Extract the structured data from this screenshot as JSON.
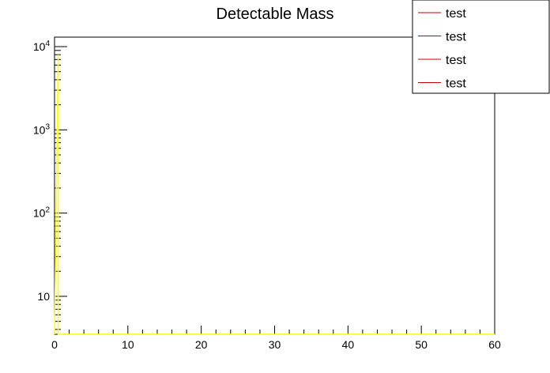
{
  "chart_data": {
    "type": "line",
    "title": "Detectable Mass",
    "xlabel": "",
    "ylabel": "",
    "xlim": [
      0,
      60
    ],
    "ylim": [
      3.5,
      13000
    ],
    "yscale": "log",
    "x_ticks": [
      0,
      10,
      20,
      30,
      40,
      50,
      60
    ],
    "y_ticks": [
      {
        "value": 10,
        "base": "10",
        "exp": ""
      },
      {
        "value": 100,
        "base": "10",
        "exp": "2"
      },
      {
        "value": 1000,
        "base": "10",
        "exp": "3"
      },
      {
        "value": 10000,
        "base": "10",
        "exp": "4"
      }
    ],
    "legend": {
      "position": "top-right",
      "entries": [
        {
          "label": "test",
          "color": "#cc0000"
        },
        {
          "label": "test",
          "color": "#cc0000"
        },
        {
          "label": "test",
          "color": "#cc0000"
        },
        {
          "label": "test",
          "color": "#cc0000"
        }
      ]
    },
    "series": [
      {
        "color": "#ffff00",
        "x": [
          0,
          0.5,
          0.5,
          60
        ],
        "y": [
          3.5,
          8000,
          3.5,
          3.5
        ]
      }
    ],
    "grid": false
  }
}
